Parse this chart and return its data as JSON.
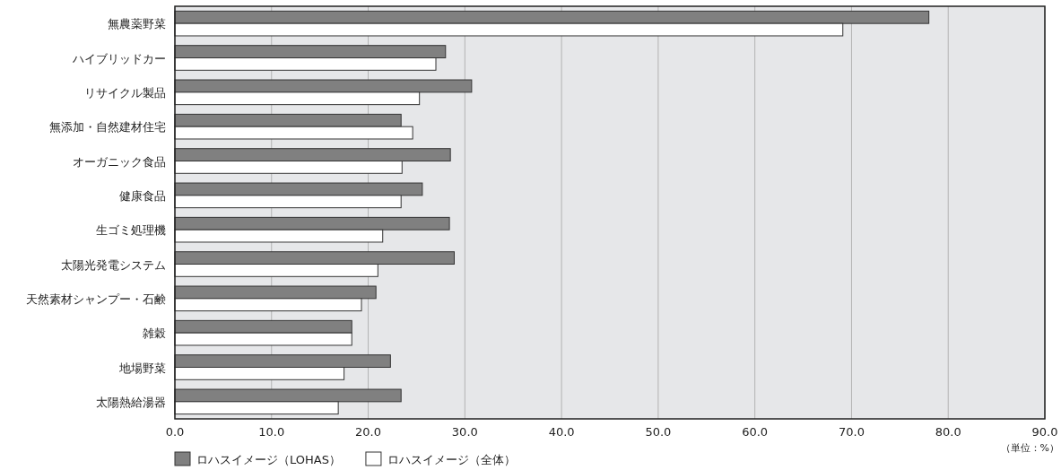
{
  "chart_data": {
    "type": "bar",
    "orientation": "horizontal",
    "categories": [
      "無農薬野菜",
      "ハイブリッドカー",
      "リサイクル製品",
      "無添加・自然建材住宅",
      "オーガニック食品",
      "健康食品",
      "生ゴミ処理機",
      "太陽光発電システム",
      "天然素材シャンプー・石鹸",
      "雑穀",
      "地場野菜",
      "太陽熱給湯器"
    ],
    "series": [
      {
        "name": "ロハスイメージ（LOHAS）",
        "color": "#808080",
        "values": [
          78.0,
          28.0,
          30.7,
          23.4,
          28.5,
          25.6,
          28.4,
          28.9,
          20.8,
          18.3,
          22.3,
          23.4
        ]
      },
      {
        "name": "ロハスイメージ（全体）",
        "color": "#ffffff",
        "values": [
          69.1,
          27.0,
          25.3,
          24.6,
          23.5,
          23.4,
          21.5,
          21.0,
          19.3,
          18.3,
          17.5,
          16.9
        ]
      }
    ],
    "xlim": [
      0,
      90
    ],
    "xticks": [
      {
        "value": 0,
        "label": "0.0"
      },
      {
        "value": 10,
        "label": "10.0"
      },
      {
        "value": 20,
        "label": "20.0"
      },
      {
        "value": 30,
        "label": "30.0"
      },
      {
        "value": 40,
        "label": "40.0"
      },
      {
        "value": 50,
        "label": "50.0"
      },
      {
        "value": 60,
        "label": "60.0"
      },
      {
        "value": 70,
        "label": "70.0"
      },
      {
        "value": 80,
        "label": "80.0"
      },
      {
        "value": 90,
        "label": "90.0"
      }
    ],
    "grid": "x",
    "legend": "bottom left",
    "annotations": [
      "（単位：%）"
    ]
  }
}
